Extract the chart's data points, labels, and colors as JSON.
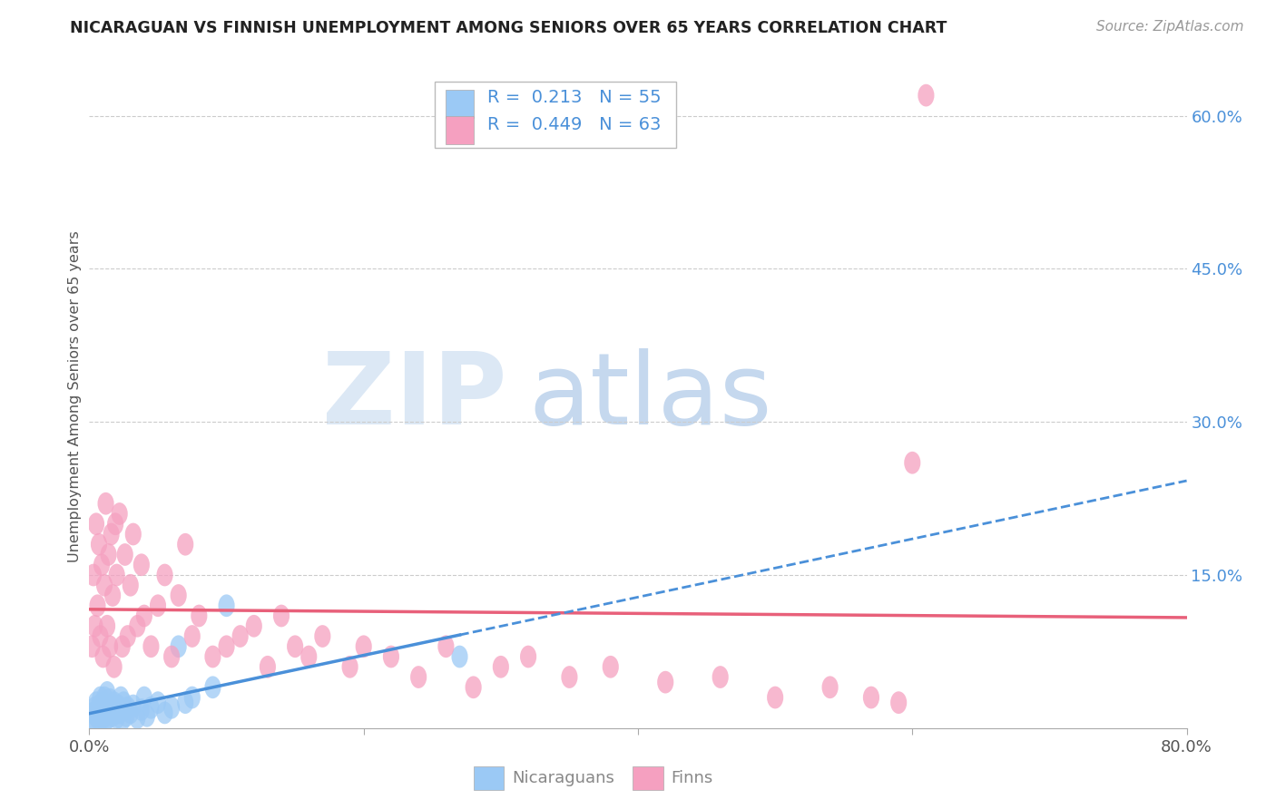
{
  "title": "NICARAGUAN VS FINNISH UNEMPLOYMENT AMONG SENIORS OVER 65 YEARS CORRELATION CHART",
  "source": "Source: ZipAtlas.com",
  "ylabel": "Unemployment Among Seniors over 65 years",
  "xlim": [
    0.0,
    0.8
  ],
  "ylim": [
    0.0,
    0.65
  ],
  "ytick_right_labels": [
    "60.0%",
    "45.0%",
    "30.0%",
    "15.0%"
  ],
  "ytick_right_values": [
    0.6,
    0.45,
    0.3,
    0.15
  ],
  "nicaraguan_color": "#9BC9F5",
  "finn_color": "#F5A0C0",
  "nicaraguan_line_color": "#4A90D9",
  "finn_line_color": "#E8607A",
  "legend_R_nicaraguan": "0.213",
  "legend_N_nicaraguan": "55",
  "legend_R_finn": "0.449",
  "legend_N_finn": "63",
  "legend_text_color": "#4A90D9",
  "background_color": "#FFFFFF",
  "grid_color": "#CCCCCC",
  "nicaraguan_x": [
    0.002,
    0.003,
    0.004,
    0.004,
    0.005,
    0.005,
    0.006,
    0.006,
    0.007,
    0.007,
    0.008,
    0.008,
    0.009,
    0.009,
    0.01,
    0.01,
    0.011,
    0.011,
    0.012,
    0.012,
    0.013,
    0.013,
    0.014,
    0.014,
    0.015,
    0.015,
    0.016,
    0.017,
    0.018,
    0.019,
    0.02,
    0.021,
    0.022,
    0.023,
    0.024,
    0.025,
    0.026,
    0.027,
    0.028,
    0.03,
    0.032,
    0.035,
    0.038,
    0.04,
    0.042,
    0.045,
    0.05,
    0.055,
    0.06,
    0.065,
    0.07,
    0.075,
    0.09,
    0.1,
    0.27
  ],
  "nicaraguan_y": [
    0.01,
    0.015,
    0.008,
    0.02,
    0.012,
    0.025,
    0.01,
    0.018,
    0.015,
    0.022,
    0.008,
    0.03,
    0.012,
    0.02,
    0.01,
    0.025,
    0.018,
    0.03,
    0.015,
    0.008,
    0.02,
    0.035,
    0.01,
    0.022,
    0.015,
    0.028,
    0.02,
    0.012,
    0.025,
    0.018,
    0.01,
    0.022,
    0.015,
    0.03,
    0.008,
    0.025,
    0.018,
    0.012,
    0.02,
    0.015,
    0.022,
    0.01,
    0.018,
    0.03,
    0.012,
    0.02,
    0.025,
    0.015,
    0.02,
    0.08,
    0.025,
    0.03,
    0.04,
    0.12,
    0.07
  ],
  "finn_x": [
    0.002,
    0.003,
    0.004,
    0.005,
    0.006,
    0.007,
    0.008,
    0.009,
    0.01,
    0.011,
    0.012,
    0.013,
    0.014,
    0.015,
    0.016,
    0.017,
    0.018,
    0.019,
    0.02,
    0.022,
    0.024,
    0.026,
    0.028,
    0.03,
    0.032,
    0.035,
    0.038,
    0.04,
    0.045,
    0.05,
    0.055,
    0.06,
    0.065,
    0.07,
    0.075,
    0.08,
    0.09,
    0.1,
    0.11,
    0.12,
    0.13,
    0.14,
    0.15,
    0.16,
    0.17,
    0.19,
    0.2,
    0.22,
    0.24,
    0.26,
    0.28,
    0.3,
    0.32,
    0.35,
    0.38,
    0.42,
    0.46,
    0.5,
    0.54,
    0.57,
    0.59,
    0.6,
    0.61
  ],
  "finn_y": [
    0.08,
    0.15,
    0.1,
    0.2,
    0.12,
    0.18,
    0.09,
    0.16,
    0.07,
    0.14,
    0.22,
    0.1,
    0.17,
    0.08,
    0.19,
    0.13,
    0.06,
    0.2,
    0.15,
    0.21,
    0.08,
    0.17,
    0.09,
    0.14,
    0.19,
    0.1,
    0.16,
    0.11,
    0.08,
    0.12,
    0.15,
    0.07,
    0.13,
    0.18,
    0.09,
    0.11,
    0.07,
    0.08,
    0.09,
    0.1,
    0.06,
    0.11,
    0.08,
    0.07,
    0.09,
    0.06,
    0.08,
    0.07,
    0.05,
    0.08,
    0.04,
    0.06,
    0.07,
    0.05,
    0.06,
    0.045,
    0.05,
    0.03,
    0.04,
    0.03,
    0.025,
    0.26,
    0.62
  ]
}
